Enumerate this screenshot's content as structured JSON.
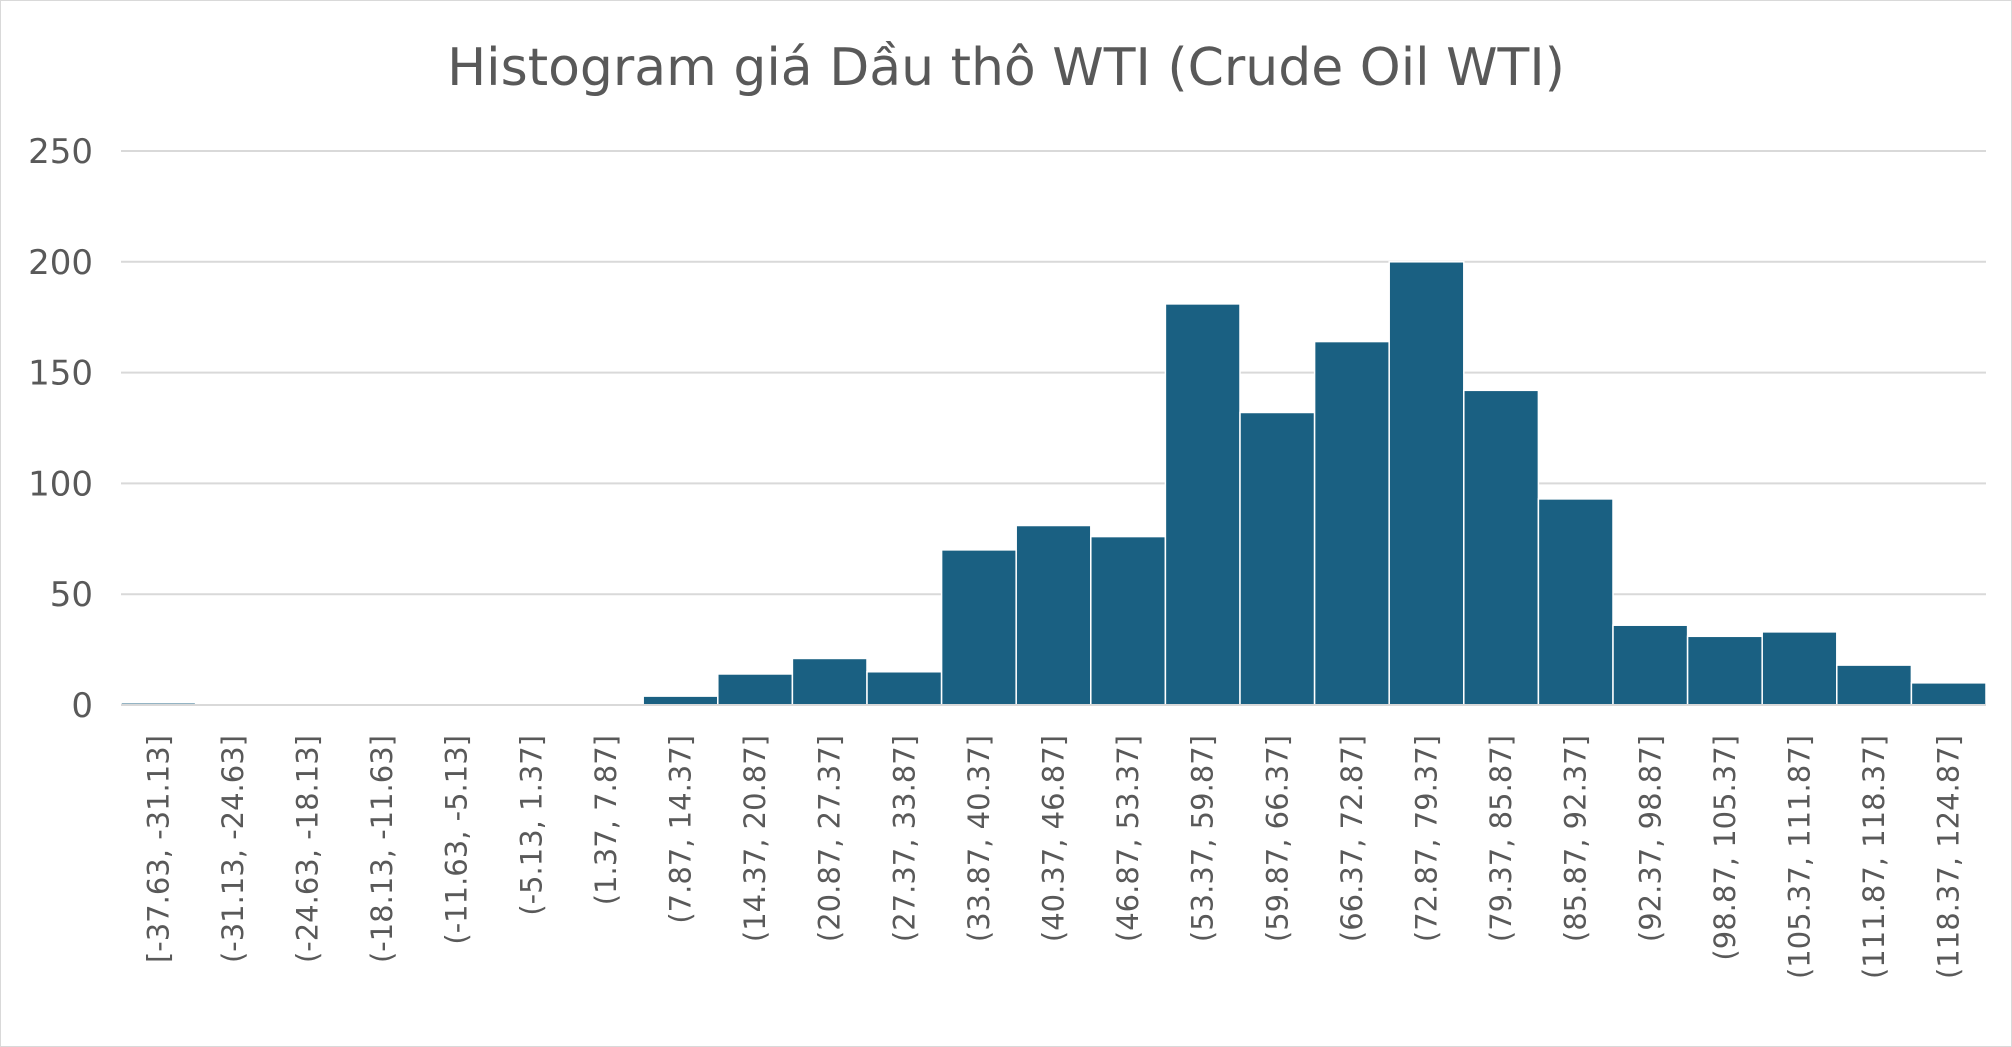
{
  "chart_data": {
    "type": "bar",
    "title": "Histogram giá Dầu thô WTI (Crude Oil WTI)",
    "xlabel": "",
    "ylabel": "",
    "ylim": [
      0,
      250
    ],
    "yticks": [
      0,
      50,
      100,
      150,
      200,
      250
    ],
    "grid": true,
    "legend": "none",
    "bar_color": "#1a6082",
    "categories": [
      "[-37.63, -31.13]",
      "(-31.13, -24.63]",
      "(-24.63, -18.13]",
      "(-18.13, -11.63]",
      "(-11.63, -5.13]",
      "(-5.13, 1.37]",
      "(1.37, 7.87]",
      "(7.87, 14.37]",
      "(14.37, 20.87]",
      "(20.87, 27.37]",
      "(27.37, 33.87]",
      "(33.87, 40.37]",
      "(40.37, 46.87]",
      "(46.87, 53.37]",
      "(53.37, 59.87]",
      "(59.87, 66.37]",
      "(66.37, 72.87]",
      "(72.87, 79.37]",
      "(79.37, 85.87]",
      "(85.87, 92.37]",
      "(92.37, 98.87]",
      "(98.87, 105.37]",
      "(105.37, 111.87]",
      "(111.87, 118.37]",
      "(118.37, 124.87]"
    ],
    "values": [
      1,
      0,
      0,
      0,
      0,
      0,
      0,
      4,
      14,
      21,
      15,
      70,
      81,
      76,
      181,
      132,
      164,
      200,
      142,
      93,
      36,
      31,
      33,
      18,
      10
    ]
  }
}
